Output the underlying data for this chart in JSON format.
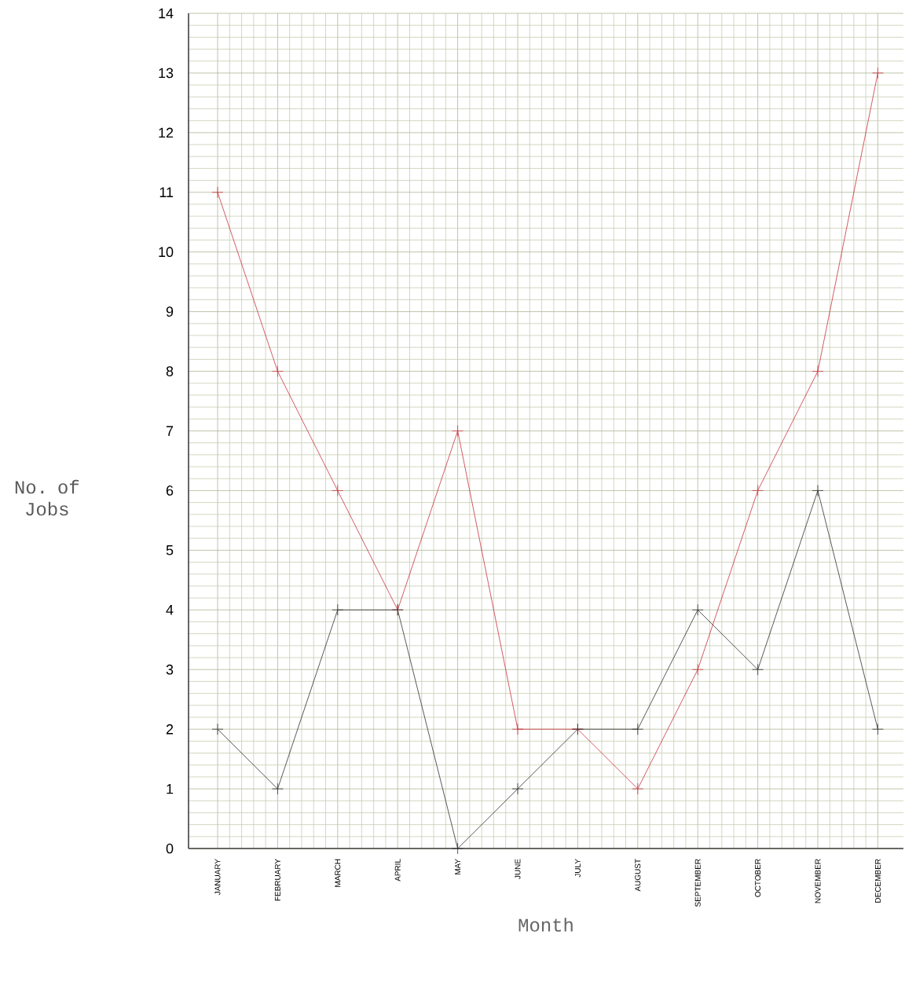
{
  "chart_data": {
    "type": "line",
    "xlabel": "Month",
    "ylabel": "No. of Jobs",
    "categories": [
      "JANUARY",
      "FEBRUARY",
      "MARCH",
      "APRIL",
      "MAY",
      "JUNE",
      "JULY",
      "AUGUST",
      "SEPTEMBER",
      "OCTOBER",
      "NOVEMBER",
      "DECEMBER"
    ],
    "series": [
      {
        "color": "#c8323c",
        "values": [
          11,
          8,
          6,
          4,
          7,
          2,
          2,
          1,
          3,
          6,
          8,
          13
        ]
      },
      {
        "color": "#303030",
        "values": [
          2,
          1,
          4,
          4,
          0,
          1,
          2,
          2,
          4,
          3,
          6,
          2
        ]
      }
    ],
    "ylim": [
      0,
      14
    ],
    "yticks": [
      0,
      1,
      2,
      3,
      4,
      5,
      6,
      7,
      8,
      9,
      10,
      11,
      12,
      13,
      14
    ],
    "grid": true,
    "marker": "cross",
    "line_style": "solid"
  }
}
